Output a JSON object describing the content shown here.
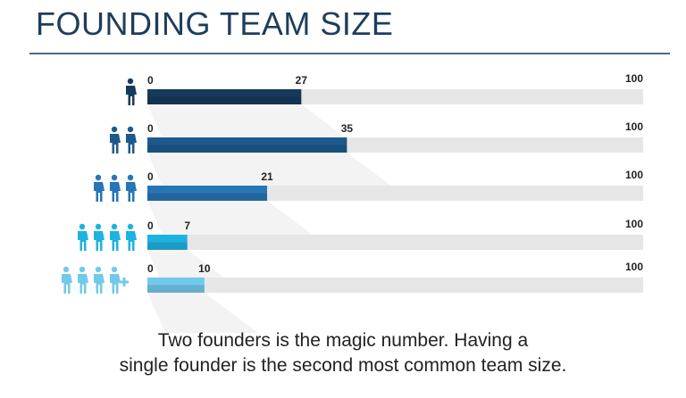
{
  "title": "FOUNDING TEAM SIZE",
  "caption_line1": "Two founders is the magic number. Having a",
  "caption_line2": "single founder is the second most common team size.",
  "chart_data": {
    "type": "bar",
    "orientation": "horizontal",
    "categories": [
      "1 founder",
      "2 founders",
      "3 founders",
      "4 founders",
      "4+ founders"
    ],
    "category_icons": [
      "person-icon x1",
      "person-icon x2",
      "person-icon x3",
      "person-icon x4",
      "person-icon x4 plus"
    ],
    "values": [
      27,
      35,
      21,
      7,
      10
    ],
    "axis_min_label": "0",
    "axis_max_label": "100",
    "xlim": [
      0,
      100
    ],
    "colors": [
      "#173a5c",
      "#1c5a8d",
      "#2774b6",
      "#1eb2e0",
      "#72c9ec"
    ],
    "track_color": "#e6e6e6",
    "grid": false
  }
}
